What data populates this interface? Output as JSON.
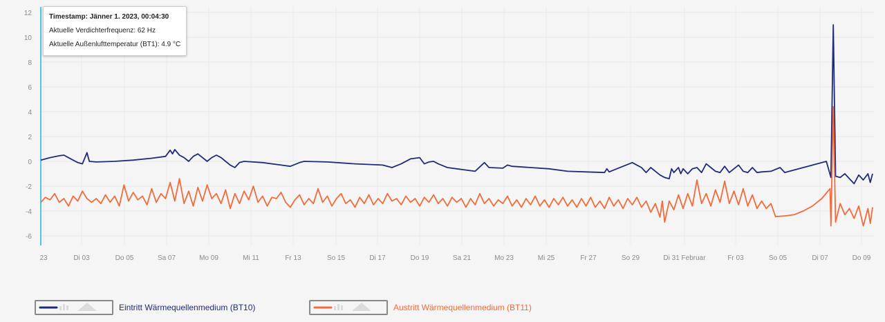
{
  "chart_data": {
    "type": "line",
    "ylim": [
      -7,
      12.5
    ],
    "y_ticks": [
      12,
      10,
      8,
      6,
      4,
      2,
      0,
      -2,
      -4,
      -6
    ],
    "x_tick_labels": [
      "23",
      "Di 03",
      "Do 05",
      "Sa 07",
      "Mo 09",
      "Mi 11",
      "Fr 13",
      "So 15",
      "Di 17",
      "Do 19",
      "Sa 21",
      "Mo 23",
      "Mi 25",
      "Fr 27",
      "So 29",
      "Di 31 Februar",
      "Fr 03",
      "So 05",
      "Di 07",
      "Do 09"
    ],
    "grid": true,
    "legend_position": "bottom",
    "series": [
      {
        "name": "Eintritt Wärmequellenmedium (BT10)",
        "color": "#1f2a7a",
        "points": [
          [
            0,
            0.1
          ],
          [
            2,
            0.3
          ],
          [
            4,
            0.45
          ],
          [
            5,
            0.5
          ],
          [
            6.5,
            0.2
          ],
          [
            8,
            -0.1
          ],
          [
            9,
            -0.2
          ],
          [
            10,
            0.7
          ],
          [
            10.5,
            0.0
          ],
          [
            12,
            -0.05
          ],
          [
            16,
            0.0
          ],
          [
            20,
            0.1
          ],
          [
            24,
            0.25
          ],
          [
            27,
            0.4
          ],
          [
            28,
            0.9
          ],
          [
            28.5,
            0.6
          ],
          [
            29,
            0.95
          ],
          [
            30,
            0.5
          ],
          [
            31,
            0.3
          ],
          [
            32,
            0.0
          ],
          [
            33,
            0.4
          ],
          [
            34,
            0.6
          ],
          [
            35,
            0.3
          ],
          [
            36,
            0.0
          ],
          [
            37,
            0.3
          ],
          [
            38,
            0.5
          ],
          [
            39,
            0.3
          ],
          [
            40,
            0.0
          ],
          [
            41,
            -0.3
          ],
          [
            42,
            -0.5
          ],
          [
            43,
            -0.1
          ],
          [
            44,
            0.0
          ],
          [
            48,
            -0.1
          ],
          [
            52,
            -0.3
          ],
          [
            54,
            -0.4
          ],
          [
            56,
            -0.1
          ],
          [
            57,
            0.0
          ],
          [
            62,
            -0.05
          ],
          [
            68,
            -0.2
          ],
          [
            74,
            -0.3
          ],
          [
            76,
            -0.5
          ],
          [
            78,
            -0.2
          ],
          [
            80,
            0.2
          ],
          [
            82,
            0.3
          ],
          [
            83,
            -0.2
          ],
          [
            84,
            -0.05
          ],
          [
            85,
            0.0
          ],
          [
            86,
            -0.2
          ],
          [
            88,
            -0.5
          ],
          [
            90,
            -0.6
          ],
          [
            92,
            -0.7
          ],
          [
            94,
            -0.8
          ],
          [
            96,
            -0.1
          ],
          [
            97,
            -0.5
          ],
          [
            100,
            -0.55
          ],
          [
            101,
            -0.3
          ],
          [
            102,
            -0.4
          ],
          [
            106,
            -0.5
          ],
          [
            110,
            -0.6
          ],
          [
            114,
            -0.8
          ],
          [
            118,
            -0.85
          ],
          [
            122,
            -0.9
          ],
          [
            122.5,
            -0.6
          ],
          [
            123,
            -0.85
          ],
          [
            124,
            -0.7
          ],
          [
            126,
            -0.4
          ],
          [
            128,
            -0.1
          ],
          [
            129,
            -0.3
          ],
          [
            130,
            -0.5
          ],
          [
            131,
            -0.9
          ],
          [
            132,
            -0.5
          ],
          [
            133,
            -0.8
          ],
          [
            134,
            -1.1
          ],
          [
            135,
            -1.3
          ],
          [
            136,
            -1.4
          ],
          [
            136.5,
            -0.6
          ],
          [
            137,
            -0.9
          ],
          [
            138,
            -0.5
          ],
          [
            138.5,
            -1.0
          ],
          [
            139,
            -0.6
          ],
          [
            140,
            -1.0
          ],
          [
            141,
            -0.6
          ],
          [
            142,
            -0.5
          ],
          [
            143,
            -0.9
          ],
          [
            144,
            -0.2
          ],
          [
            145,
            -0.5
          ],
          [
            146,
            -0.8
          ],
          [
            147,
            -0.9
          ],
          [
            148,
            -0.4
          ],
          [
            149,
            -0.9
          ],
          [
            150,
            -0.6
          ],
          [
            151,
            -0.3
          ],
          [
            152,
            -0.8
          ],
          [
            153,
            -0.9
          ],
          [
            154,
            -0.5
          ],
          [
            155,
            -0.9
          ],
          [
            156,
            -0.85
          ],
          [
            158,
            -0.8
          ],
          [
            160,
            -0.5
          ],
          [
            161,
            -0.9
          ],
          [
            162,
            -0.8
          ],
          [
            164,
            -0.6
          ],
          [
            166,
            -0.4
          ],
          [
            168,
            -0.2
          ],
          [
            170,
            0.0
          ],
          [
            171,
            -1.3
          ],
          [
            171.5,
            11.0
          ],
          [
            172,
            -1.2
          ],
          [
            173,
            -1.3
          ],
          [
            174,
            -1.0
          ],
          [
            175,
            -1.4
          ],
          [
            176,
            -1.8
          ],
          [
            177,
            -1.1
          ],
          [
            178,
            -1.5
          ],
          [
            179,
            -1.0
          ],
          [
            179.5,
            -1.7
          ],
          [
            180,
            -1.0
          ]
        ]
      },
      {
        "name": "Austritt Wärmequellenmedium (BT11)",
        "color": "#f26b3a",
        "points": [
          [
            0,
            -3.3
          ],
          [
            1,
            -2.9
          ],
          [
            2,
            -3.1
          ],
          [
            3,
            -2.6
          ],
          [
            4,
            -3.3
          ],
          [
            5,
            -3.0
          ],
          [
            6,
            -3.6
          ],
          [
            7,
            -2.8
          ],
          [
            8,
            -3.2
          ],
          [
            9,
            -2.4
          ],
          [
            10,
            -3.0
          ],
          [
            11,
            -3.3
          ],
          [
            12,
            -3.0
          ],
          [
            13,
            -3.4
          ],
          [
            14,
            -2.7
          ],
          [
            15,
            -3.3
          ],
          [
            16,
            -2.8
          ],
          [
            17,
            -3.6
          ],
          [
            18,
            -1.9
          ],
          [
            19,
            -3.2
          ],
          [
            20,
            -2.5
          ],
          [
            21,
            -3.1
          ],
          [
            22,
            -2.8
          ],
          [
            23,
            -3.5
          ],
          [
            24,
            -2.2
          ],
          [
            25,
            -3.3
          ],
          [
            26,
            -2.6
          ],
          [
            27,
            -3.0
          ],
          [
            28,
            -1.7
          ],
          [
            29,
            -3.2
          ],
          [
            30,
            -1.4
          ],
          [
            31,
            -3.4
          ],
          [
            32,
            -2.4
          ],
          [
            33,
            -3.6
          ],
          [
            34,
            -2.1
          ],
          [
            35,
            -3.2
          ],
          [
            36,
            -1.9
          ],
          [
            37,
            -3.0
          ],
          [
            38,
            -2.6
          ],
          [
            39,
            -3.4
          ],
          [
            40,
            -2.3
          ],
          [
            41,
            -3.8
          ],
          [
            42,
            -2.6
          ],
          [
            43,
            -3.4
          ],
          [
            44,
            -2.4
          ],
          [
            45,
            -3.1
          ],
          [
            46,
            -2.0
          ],
          [
            47,
            -3.3
          ],
          [
            48,
            -2.8
          ],
          [
            49,
            -3.6
          ],
          [
            50,
            -2.9
          ],
          [
            51,
            -3.0
          ],
          [
            52,
            -2.5
          ],
          [
            53,
            -3.3
          ],
          [
            54,
            -3.7
          ],
          [
            55,
            -3.1
          ],
          [
            56,
            -2.7
          ],
          [
            57,
            -3.5
          ],
          [
            58,
            -3.0
          ],
          [
            59,
            -3.4
          ],
          [
            60,
            -2.2
          ],
          [
            61,
            -3.3
          ],
          [
            62,
            -2.8
          ],
          [
            63,
            -3.6
          ],
          [
            64,
            -3.0
          ],
          [
            65,
            -2.6
          ],
          [
            66,
            -3.4
          ],
          [
            67,
            -3.1
          ],
          [
            68,
            -3.7
          ],
          [
            69,
            -2.9
          ],
          [
            70,
            -3.4
          ],
          [
            71,
            -2.7
          ],
          [
            72,
            -3.5
          ],
          [
            73,
            -3.0
          ],
          [
            74,
            -3.4
          ],
          [
            75,
            -2.6
          ],
          [
            76,
            -3.2
          ],
          [
            77,
            -3.0
          ],
          [
            78,
            -3.5
          ],
          [
            79,
            -2.8
          ],
          [
            80,
            -3.3
          ],
          [
            81,
            -3.0
          ],
          [
            82,
            -3.6
          ],
          [
            83,
            -2.9
          ],
          [
            84,
            -3.3
          ],
          [
            85,
            -2.7
          ],
          [
            86,
            -3.4
          ],
          [
            87,
            -3.0
          ],
          [
            88,
            -3.6
          ],
          [
            89,
            -2.9
          ],
          [
            90,
            -3.3
          ],
          [
            91,
            -3.0
          ],
          [
            92,
            -3.7
          ],
          [
            93,
            -3.0
          ],
          [
            94,
            -3.5
          ],
          [
            95,
            -2.6
          ],
          [
            96,
            -3.4
          ],
          [
            97,
            -3.0
          ],
          [
            98,
            -3.6
          ],
          [
            99,
            -3.1
          ],
          [
            100,
            -3.4
          ],
          [
            101,
            -2.8
          ],
          [
            102,
            -3.6
          ],
          [
            103,
            -3.1
          ],
          [
            104,
            -3.7
          ],
          [
            105,
            -3.0
          ],
          [
            106,
            -3.5
          ],
          [
            107,
            -2.8
          ],
          [
            108,
            -3.6
          ],
          [
            109,
            -3.1
          ],
          [
            110,
            -3.7
          ],
          [
            111,
            -3.0
          ],
          [
            112,
            -3.5
          ],
          [
            113,
            -2.9
          ],
          [
            114,
            -3.6
          ],
          [
            115,
            -3.1
          ],
          [
            116,
            -3.7
          ],
          [
            117,
            -3.0
          ],
          [
            118,
            -3.6
          ],
          [
            119,
            -2.9
          ],
          [
            120,
            -3.7
          ],
          [
            121,
            -3.2
          ],
          [
            122,
            -3.8
          ],
          [
            123,
            -2.9
          ],
          [
            124,
            -3.6
          ],
          [
            125,
            -3.1
          ],
          [
            126,
            -3.8
          ],
          [
            127,
            -3.0
          ],
          [
            128,
            -3.5
          ],
          [
            129,
            -2.9
          ],
          [
            130,
            -3.7
          ],
          [
            131,
            -3.2
          ],
          [
            132,
            -4.1
          ],
          [
            133,
            -3.4
          ],
          [
            134,
            -4.5
          ],
          [
            134.5,
            -3.2
          ],
          [
            135,
            -4.9
          ],
          [
            136,
            -3.2
          ],
          [
            137,
            -3.9
          ],
          [
            138,
            -2.7
          ],
          [
            139,
            -3.8
          ],
          [
            140,
            -2.6
          ],
          [
            141,
            -3.6
          ],
          [
            142,
            -1.5
          ],
          [
            143,
            -3.4
          ],
          [
            144,
            -2.6
          ],
          [
            145,
            -3.6
          ],
          [
            146,
            -2.3
          ],
          [
            147,
            -3.3
          ],
          [
            148,
            -1.6
          ],
          [
            149,
            -3.4
          ],
          [
            150,
            -2.4
          ],
          [
            151,
            -3.5
          ],
          [
            152,
            -2.2
          ],
          [
            153,
            -3.6
          ],
          [
            154,
            -2.7
          ],
          [
            155,
            -3.8
          ],
          [
            156,
            -3.2
          ],
          [
            157,
            -3.8
          ],
          [
            158,
            -3.4
          ],
          [
            159,
            -4.45
          ],
          [
            161,
            -4.4
          ],
          [
            163,
            -4.3
          ],
          [
            165,
            -4.0
          ],
          [
            167,
            -3.6
          ],
          [
            169,
            -3.0
          ],
          [
            170.8,
            -2.2
          ],
          [
            171,
            -5.2
          ],
          [
            171.5,
            4.4
          ],
          [
            172,
            -4.9
          ],
          [
            173,
            -3.4
          ],
          [
            174,
            -4.3
          ],
          [
            175,
            -3.8
          ],
          [
            176,
            -4.6
          ],
          [
            177,
            -3.6
          ],
          [
            178,
            -5.2
          ],
          [
            179,
            -3.8
          ],
          [
            179.5,
            -5.0
          ],
          [
            180,
            -3.7
          ]
        ]
      }
    ]
  },
  "tooltip": {
    "timestamp": "Timestamp: Jänner 1. 2023, 00:04:30",
    "line2": "Aktuelle Verdichterfrequenz: 62 Hz",
    "line3": "Aktuelle Außenlufttemperatur (BT1): 4.9 °C"
  },
  "legend": [
    {
      "label": "Eintritt Wärmequellenmedium (BT10)",
      "color": "#1f2a7a"
    },
    {
      "label": "Austritt Wärmequellenmedium (BT11)",
      "color": "#f26b3a"
    }
  ]
}
